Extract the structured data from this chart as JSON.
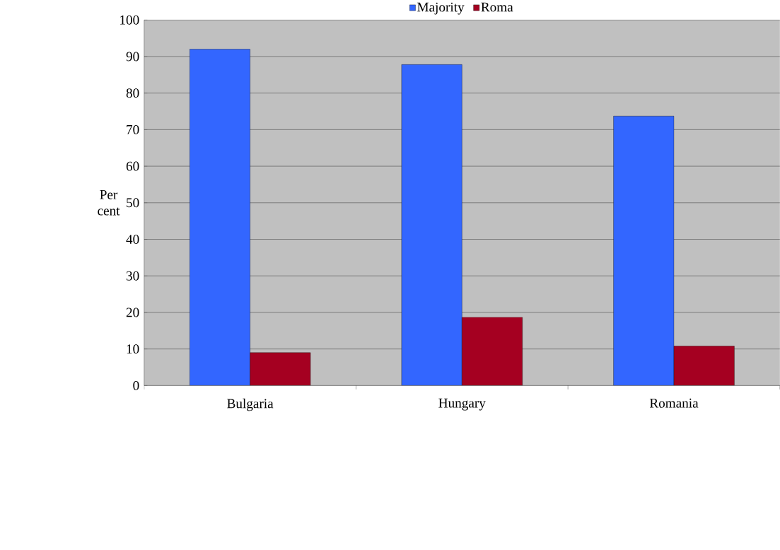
{
  "chart_data": {
    "type": "bar",
    "ylabel": "Per cent",
    "categories": [
      "Bulgaria",
      "Hungary",
      "Romania"
    ],
    "series": [
      {
        "name": "Majority",
        "color": "#3366ff",
        "values": [
          92.0,
          87.8,
          73.7
        ]
      },
      {
        "name": "Roma",
        "color": "#a50021",
        "values": [
          9.0,
          18.7,
          10.8
        ]
      }
    ],
    "ylim": [
      0,
      100
    ],
    "yticks": [
      0,
      10,
      20,
      30,
      40,
      50,
      60,
      70,
      80,
      90,
      100
    ],
    "grid": "y",
    "legend": "top"
  }
}
